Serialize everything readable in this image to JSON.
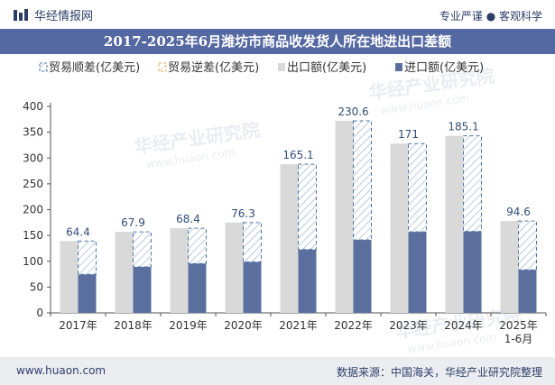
{
  "header": {
    "brand": "华经情报网",
    "tagline": "专业严谨 ● 客观科学"
  },
  "footer": {
    "url": "www.huaon.com",
    "source": "数据来源：中国海关，华经产业研究院整理"
  },
  "watermark": {
    "text": "华经产业研究院",
    "url": "www.huaon.com"
  },
  "colors": {
    "export": "#d9d9d9",
    "import": "#5b6f9f",
    "surplus_stroke": "#4f78a8",
    "deficit_stroke": "#d8b25a",
    "title_bg": "#5468a2"
  },
  "chart_data": {
    "type": "bar",
    "title": "2017-2025年6月潍坊市商品收发货人所在地进出口差额",
    "categories": [
      "2017年",
      "2018年",
      "2019年",
      "2020年",
      "2021年",
      "2022年",
      "2023年",
      "2024年",
      "2025年\n1-6月"
    ],
    "series": [
      {
        "name": "贸易顺差(亿美元)",
        "values": [
          64.4,
          67.9,
          68.4,
          76.3,
          165.1,
          230.6,
          171,
          185.1,
          94.6
        ]
      },
      {
        "name": "贸易逆差(亿美元)",
        "values": [
          0,
          0,
          0,
          0,
          0,
          0,
          0,
          0,
          0
        ]
      },
      {
        "name": "出口额(亿美元)",
        "values": [
          139,
          157,
          164,
          175,
          288,
          372,
          328,
          343,
          178
        ]
      },
      {
        "name": "进口额(亿美元)",
        "values": [
          74.6,
          89.1,
          95.6,
          98.7,
          122.9,
          141.4,
          157,
          157.9,
          83.4
        ]
      }
    ],
    "ylim": [
      0,
      400
    ],
    "yticks": [
      0,
      50,
      100,
      150,
      200,
      250,
      300,
      350,
      400
    ],
    "grid": false,
    "legend_position": "top"
  }
}
